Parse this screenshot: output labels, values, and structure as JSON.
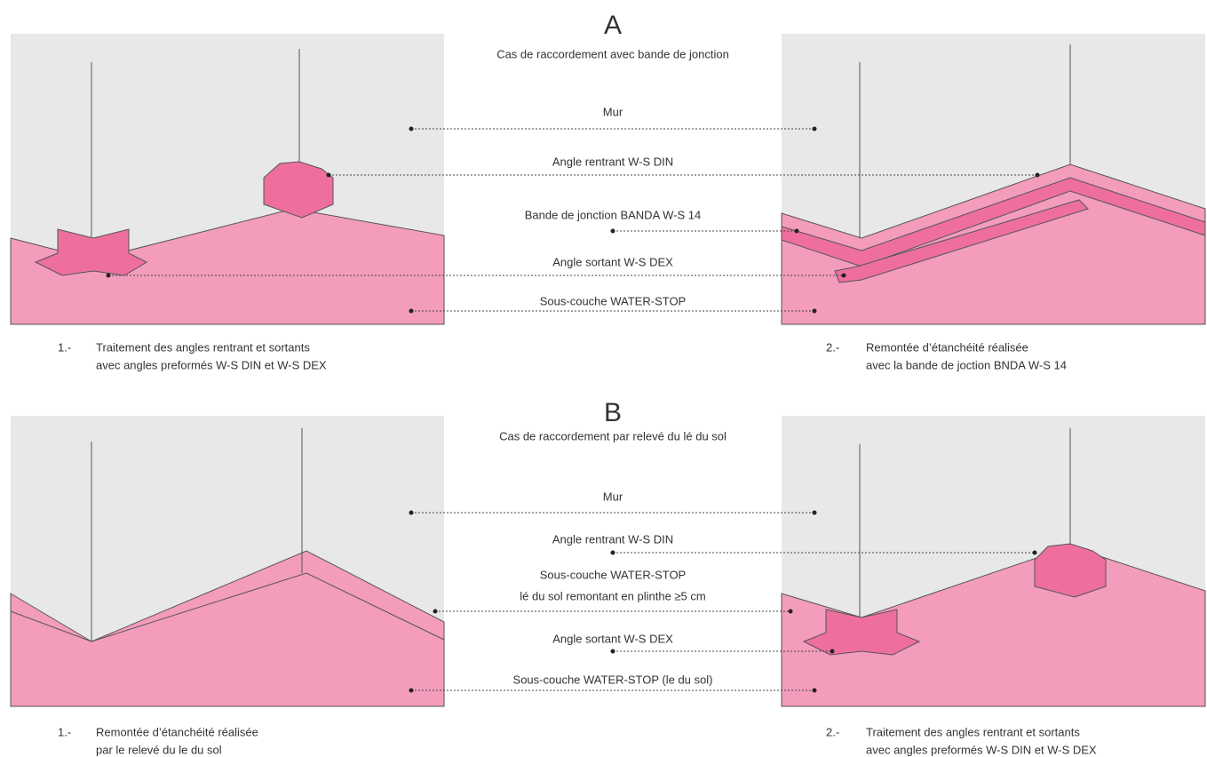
{
  "sections": [
    {
      "letter": "A",
      "subtitle": "Cas de raccordement avec bande de jonction",
      "labels": [
        "Mur",
        "Angle rentrant W-S DIN",
        "Bande de jonction BANDA W-S 14",
        "Angle sortant W-S DEX",
        "Sous-couche WATER-STOP"
      ],
      "captions": [
        {
          "number": "1.-",
          "lines": [
            "Traitement des angles rentrant et sortants",
            "avec angles preformés W-S DIN et W-S DEX"
          ]
        },
        {
          "number": "2.-",
          "lines": [
            "Remontée d’étanchéité réalisée",
            "avec la bande de joction BNDA W-S 14"
          ]
        }
      ]
    },
    {
      "letter": "B",
      "subtitle": "Cas de raccordement par relevé du lé du sol",
      "labels": [
        "Mur",
        "Angle rentrant W-S DIN",
        "Sous-couche WATER-STOP",
        "lé du sol remontant en plinthe ≥5 cm",
        "Angle sortant W-S DEX",
        "Sous-couche WATER-STOP (le du sol)"
      ],
      "captions": [
        {
          "number": "1.-",
          "lines": [
            "Remontée d’étanchéité réalisée",
            "par le relevé du le du sol"
          ]
        },
        {
          "number": "2.-",
          "lines": [
            "Traitement des angles rentrant et sortants",
            "avec angles preformés W-S DIN et W-S DEX"
          ]
        }
      ]
    }
  ]
}
